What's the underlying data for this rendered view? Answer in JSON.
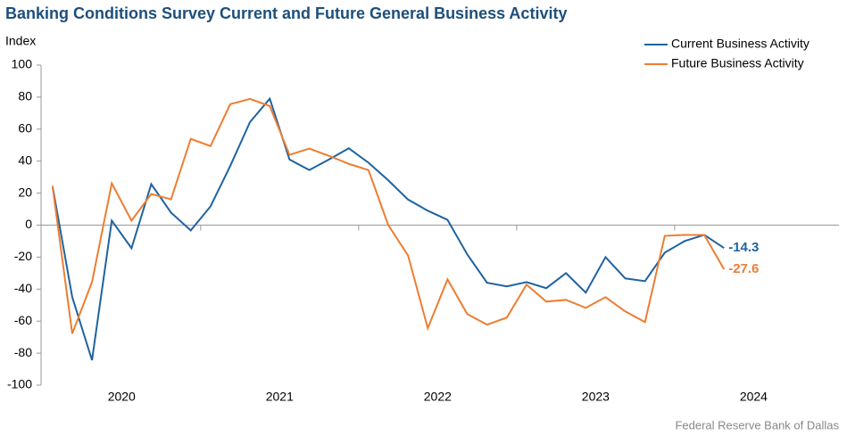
{
  "chart_data": {
    "type": "line",
    "title": "Banking Conditions Survey Current and Future General Business Activity",
    "y_label": "Index",
    "source": "Federal Reserve Bank of Dallas",
    "x": [
      2020.0625,
      2020.1875,
      2020.3125,
      2020.4375,
      2020.5625,
      2020.6875,
      2020.8125,
      2020.9375,
      2021.0625,
      2021.1875,
      2021.3125,
      2021.4375,
      2021.5625,
      2021.6875,
      2021.8125,
      2021.9375,
      2022.0625,
      2022.1875,
      2022.3125,
      2022.4375,
      2022.5625,
      2022.6875,
      2022.8125,
      2022.9375,
      2023.0625,
      2023.1875,
      2023.3125,
      2023.4375,
      2023.5625,
      2023.6875,
      2023.8125,
      2023.9375,
      2024.0625,
      2024.1875,
      2024.3125
    ],
    "xlim": [
      2019.99,
      2025.04
    ],
    "xticks": [
      {
        "value": 2020.5,
        "label": "2020"
      },
      {
        "value": 2021.5,
        "label": "2021"
      },
      {
        "value": 2022.5,
        "label": "2022"
      },
      {
        "value": 2023.5,
        "label": "2023"
      },
      {
        "value": 2024.5,
        "label": "2024"
      }
    ],
    "ylim": [
      -100,
      100
    ],
    "yticks": [
      -100,
      -80,
      -60,
      -40,
      -20,
      0,
      20,
      40,
      60,
      80,
      100
    ],
    "legend": "top-right",
    "series": [
      {
        "name": "Current Business Activity",
        "color": "#1f63a0",
        "values": [
          24.4,
          -45,
          -84.4,
          2.8,
          -14.4,
          25.6,
          7.8,
          -3.3,
          11.7,
          37,
          64.4,
          79,
          41,
          34.4,
          41,
          48,
          39,
          28,
          16,
          9,
          3.3,
          -18.3,
          -36,
          -38.3,
          -35.6,
          -39.4,
          -30,
          -42.2,
          -20,
          -33.3,
          -35,
          -17.2,
          -10,
          -6.1,
          -14.3
        ]
      },
      {
        "name": "Future Business Activity",
        "color": "#ee7d31",
        "values": [
          24.4,
          -67.8,
          -35.6,
          26.1,
          2.8,
          19.4,
          16.1,
          53.9,
          49.4,
          75.6,
          78.9,
          74.4,
          43.9,
          47.8,
          43.3,
          38.3,
          34.4,
          0,
          -18.9,
          -64.4,
          -33.9,
          -55.6,
          -62.2,
          -57.8,
          -37.2,
          -47.8,
          -46.7,
          -51.7,
          -45,
          -53.9,
          -60.6,
          -6.7,
          -6.1,
          -6.1,
          -27.6
        ]
      }
    ]
  }
}
